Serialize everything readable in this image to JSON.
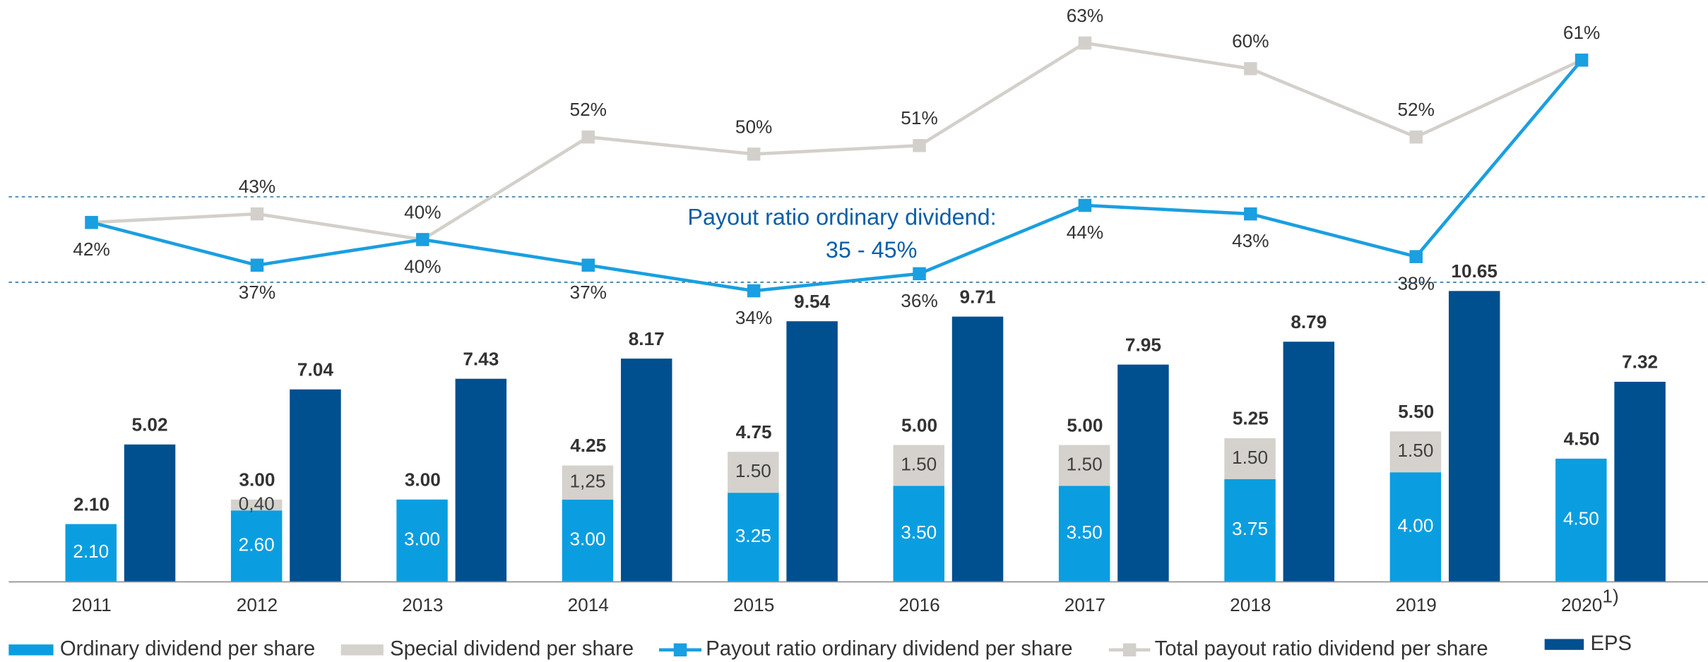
{
  "chart_data": {
    "type": "bar",
    "categories": [
      "2011",
      "2012",
      "2013",
      "2014",
      "2015",
      "2016",
      "2017",
      "2018",
      "2019",
      "2020"
    ],
    "category_notes": [
      null,
      null,
      null,
      null,
      null,
      null,
      null,
      null,
      null,
      "1)"
    ],
    "ylim": [
      0,
      21
    ],
    "y2lim": [
      0,
      67
    ],
    "series": [
      {
        "name": "Ordinary dividend per share",
        "type": "bar",
        "color": "#0a9ee0",
        "values": [
          2.1,
          2.6,
          3.0,
          3.0,
          3.25,
          3.5,
          3.5,
          3.75,
          4.0,
          4.5
        ],
        "value_labels": [
          "2.10",
          "2.60",
          "3.00",
          "3.00",
          "3.25",
          "3.50",
          "3.50",
          "3.75",
          "4.00",
          "4.50"
        ]
      },
      {
        "name": "Special dividend per share",
        "type": "bar",
        "color": "#d5d2cd",
        "values": [
          null,
          0.4,
          null,
          1.25,
          1.5,
          1.5,
          1.5,
          1.5,
          1.5,
          null
        ],
        "value_labels": [
          null,
          "0,40",
          null,
          "1,25",
          "1.50",
          "1.50",
          "1.50",
          "1.50",
          "1.50",
          null
        ]
      },
      {
        "name": "Payout ratio ordinary dividend per share",
        "type": "line",
        "axis": "y2",
        "color": "#1a9fe0",
        "values": [
          42,
          37,
          40,
          37,
          34,
          36,
          44,
          43,
          38,
          61
        ],
        "value_labels": [
          "42%",
          "37%",
          "40%",
          "37%",
          "34%",
          "36%",
          "44%",
          "43%",
          "38%",
          null
        ]
      },
      {
        "name": "Total payout ratio dividend per share",
        "type": "line",
        "axis": "y2",
        "color": "#d3d0cb",
        "values": [
          42,
          43,
          40,
          52,
          50,
          51,
          63,
          60,
          52,
          61
        ],
        "value_labels": [
          null,
          "43%",
          "40%",
          "52%",
          "50%",
          "51%",
          "63%",
          "60%",
          "52%",
          "61%"
        ]
      },
      {
        "name": "EPS",
        "type": "bar",
        "color": "#004f8f",
        "values": [
          5.02,
          7.04,
          7.43,
          8.17,
          9.54,
          9.71,
          7.95,
          8.79,
          10.65,
          7.32
        ]
      }
    ],
    "totals": {
      "values": [
        2.1,
        3.0,
        3.0,
        4.25,
        4.75,
        5.0,
        5.0,
        5.25,
        5.5,
        4.5
      ],
      "value_labels": [
        "2.10",
        "3.00",
        "3.00",
        "4.25",
        "4.75",
        "5.00",
        "5.00",
        "5.25",
        "5.50",
        "4.50"
      ]
    },
    "reference_band": {
      "axis": "y2",
      "values": [
        35,
        45
      ]
    },
    "annotation": [
      "Payout ratio ordinary dividend:",
      "35 - 45%"
    ]
  }
}
